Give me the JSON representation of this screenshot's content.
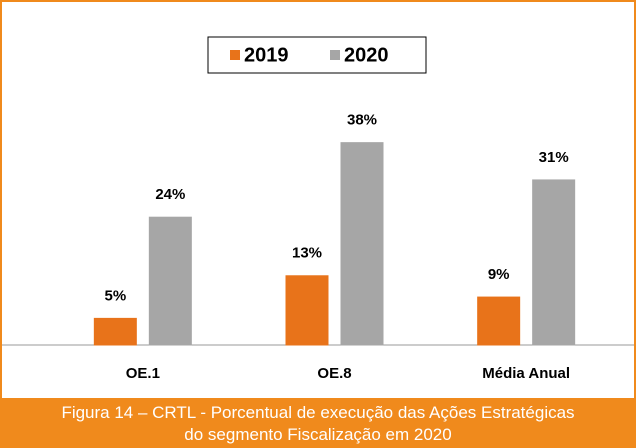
{
  "chart_data": {
    "type": "bar",
    "categories": [
      "OE.1",
      "OE.8",
      "Média Anual"
    ],
    "series": [
      {
        "name": "2019",
        "color": "#e8731a",
        "values": [
          5,
          13,
          9
        ],
        "value_labels": [
          "5%",
          "13%",
          "9%"
        ]
      },
      {
        "name": "2020",
        "color": "#a6a6a6",
        "values": [
          24,
          38,
          31
        ],
        "value_labels": [
          "24%",
          "38%",
          "31%"
        ]
      }
    ],
    "ylim": [
      0,
      40
    ],
    "legend": "top",
    "caption": [
      "Figura 14 – CRTL - Porcentual de execução das Ações Estratégicas",
      "do segmento Fiscalização em 2020"
    ]
  }
}
